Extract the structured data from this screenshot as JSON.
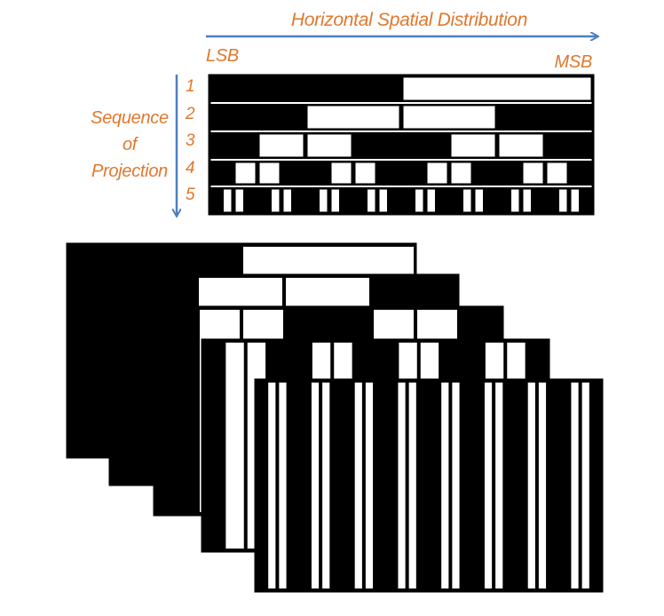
{
  "colors": {
    "accent": "#e0782e",
    "arrow": "#4f7fbf",
    "black": "#000000",
    "white": "#ffffff"
  },
  "labels": {
    "horizontal_axis": "Horizontal Spatial Distribution",
    "lsb": "LSB",
    "msb": "MSB",
    "sequence_line1": "Sequence",
    "sequence_line2": "of",
    "sequence_line3": "Projection"
  },
  "sequence_numbers": [
    "1",
    "2",
    "3",
    "4",
    "5"
  ],
  "patterns": [
    {
      "number": "1",
      "stripes": 2,
      "first": "black"
    },
    {
      "number": "2",
      "stripes": 4,
      "first": "black"
    },
    {
      "number": "3",
      "stripes": 8,
      "first": "black"
    },
    {
      "number": "4",
      "stripes": 16,
      "first": "black"
    },
    {
      "number": "5",
      "stripes": 32,
      "first": "black"
    }
  ]
}
